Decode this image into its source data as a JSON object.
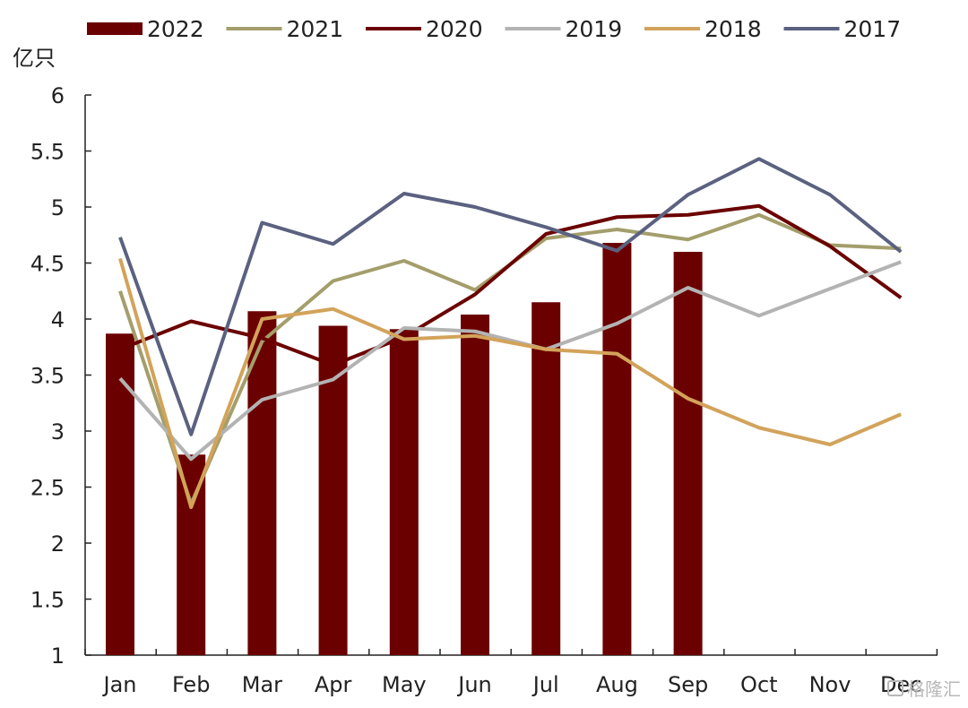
{
  "chart_data": {
    "type": "bar",
    "unit": "亿只",
    "categories": [
      "Jan",
      "Feb",
      "Mar",
      "Apr",
      "May",
      "Jun",
      "Jul",
      "Aug",
      "Sep",
      "Oct",
      "Nov",
      "Dec"
    ],
    "ylim": [
      1,
      6
    ],
    "yticks": [
      1,
      1.5,
      2,
      2.5,
      3,
      3.5,
      4,
      4.5,
      5,
      5.5,
      6
    ],
    "ytick_labels": [
      "1",
      "1.5",
      "2",
      "2.5",
      "3",
      "3.5",
      "4",
      "4.5",
      "5",
      "5.5",
      "6"
    ],
    "grid": false,
    "legend_position": "top",
    "bar_series": {
      "name": "2022",
      "color": "#6b0000",
      "values": [
        3.87,
        2.79,
        4.07,
        3.94,
        3.91,
        4.04,
        4.15,
        4.68,
        4.6
      ]
    },
    "line_series": [
      {
        "name": "2021",
        "color": "#a39e6b",
        "values": [
          4.25,
          2.35,
          3.8,
          4.34,
          4.52,
          4.26,
          4.72,
          4.8,
          4.71,
          4.93,
          4.66,
          4.63
        ]
      },
      {
        "name": "2020",
        "color": "#6b0000",
        "values": [
          3.73,
          3.98,
          3.83,
          3.59,
          3.84,
          4.22,
          4.76,
          4.91,
          4.93,
          5.01,
          4.65,
          4.19
        ]
      },
      {
        "name": "2019",
        "color": "#b3b3b3",
        "values": [
          3.47,
          2.75,
          3.28,
          3.46,
          3.92,
          3.89,
          3.73,
          3.96,
          4.28,
          4.03,
          4.27,
          4.51
        ]
      },
      {
        "name": "2018",
        "color": "#d2a35a",
        "values": [
          4.54,
          2.32,
          4.0,
          4.09,
          3.82,
          3.85,
          3.73,
          3.69,
          3.29,
          3.03,
          2.88,
          3.15
        ]
      },
      {
        "name": "2017",
        "color": "#5b6180",
        "values": [
          4.73,
          2.97,
          4.86,
          4.67,
          5.12,
          5.0,
          4.82,
          4.61,
          5.11,
          5.43,
          5.11,
          4.6
        ]
      }
    ],
    "legend_order": [
      "2022",
      "2021",
      "2020",
      "2019",
      "2018",
      "2017"
    ]
  },
  "watermark": "格隆汇"
}
